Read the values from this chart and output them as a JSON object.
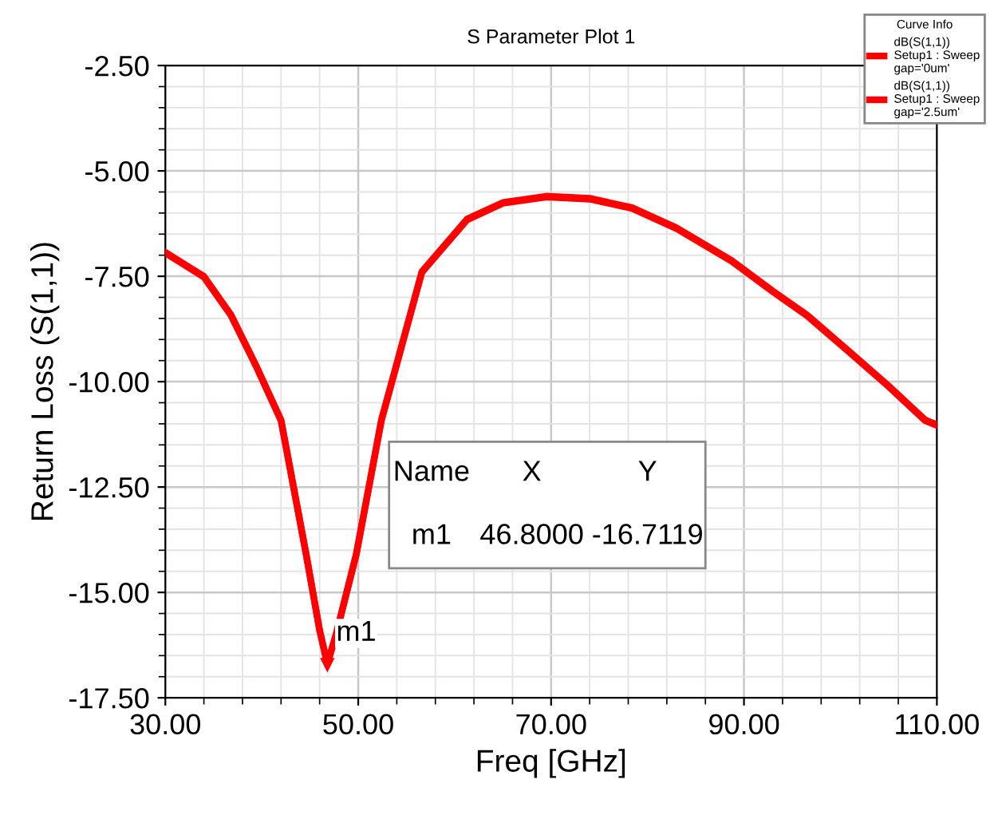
{
  "chart_data": {
    "type": "line",
    "title": "S Parameter Plot 1",
    "xlabel": "Freq [GHz]",
    "ylabel": "Return Loss (S(1,1))",
    "legend_title": "Curve Info",
    "series": [
      {
        "name": "dB(S(1,1))\nSetup1 : Sweep\ngap='0um'",
        "color": "#ff0000",
        "x": [
          30,
          34,
          36.8,
          39.5,
          42,
          44.6,
          46,
          46.8,
          47.7,
          49.8,
          52.4,
          56.6,
          61.3,
          65,
          69.5,
          74,
          78.4,
          83,
          88.7,
          93,
          96.5,
          101,
          105,
          108.8,
          110
        ],
        "values": [
          -6.93,
          -7.5,
          -8.41,
          -9.66,
          -10.91,
          -14.09,
          -15.9,
          -16.7,
          -16.0,
          -14.09,
          -10.91,
          -7.39,
          -6.14,
          -5.75,
          -5.6,
          -5.65,
          -5.87,
          -6.35,
          -7.12,
          -7.85,
          -8.41,
          -9.3,
          -10.1,
          -10.91,
          -11.02
        ]
      },
      {
        "name": "dB(S(1,1))\nSetup1 : Sweep\ngap='2.5um'",
        "color": "#ff0000",
        "x": [
          30,
          34,
          36.8,
          39.5,
          42,
          44.6,
          46,
          46.8,
          47.7,
          49.8,
          52.4,
          56.6,
          61.3,
          65,
          69.5,
          74,
          78.4,
          83,
          88.7,
          93,
          96.5,
          101,
          105,
          108.8,
          110
        ],
        "values": [
          -6.95,
          -7.52,
          -8.43,
          -9.68,
          -10.93,
          -14.1,
          -15.9,
          -16.7,
          -16.0,
          -14.1,
          -10.93,
          -7.41,
          -6.16,
          -5.77,
          -5.62,
          -5.67,
          -5.89,
          -6.37,
          -7.14,
          -7.87,
          -8.43,
          -9.32,
          -10.12,
          -10.93,
          -11.04
        ]
      }
    ],
    "xlim": [
      30,
      110
    ],
    "ylim": [
      -17.5,
      -2.5
    ],
    "xticks": [
      {
        "value": 30,
        "label": "30.00"
      },
      {
        "value": 50,
        "label": "50.00"
      },
      {
        "value": 70,
        "label": "70.00"
      },
      {
        "value": 90,
        "label": "90.00"
      },
      {
        "value": 110,
        "label": "110.00"
      }
    ],
    "yticks": [
      {
        "value": -17.5,
        "label": "-17.50"
      },
      {
        "value": -15,
        "label": "-15.00"
      },
      {
        "value": -12.5,
        "label": "-12.50"
      },
      {
        "value": -10,
        "label": "-10.00"
      },
      {
        "value": -7.5,
        "label": "-7.50"
      },
      {
        "value": -5,
        "label": "-5.00"
      },
      {
        "value": -2.5,
        "label": "-2.50"
      }
    ],
    "grid": true,
    "legend": "top right",
    "line_style": "solid",
    "marker": "none",
    "annotations": [
      {
        "text": "m1",
        "x": 46.8,
        "y": -16.7119
      },
      "Name",
      "X",
      "Y",
      "m1",
      "46.8000",
      "-16.7119"
    ]
  }
}
